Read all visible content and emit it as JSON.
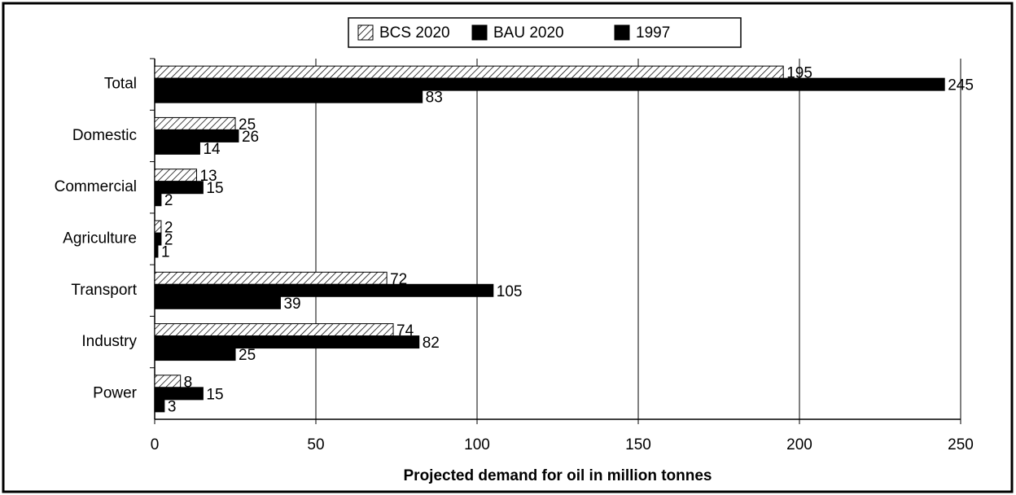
{
  "chart_data": {
    "type": "hbar",
    "x_label": "Projected demand for oil in million tonnes",
    "categories": [
      "Total",
      "Domestic",
      "Commercial",
      "Agriculture",
      "Transport",
      "Industry",
      "Power"
    ],
    "series": [
      {
        "name": "BCS 2020",
        "color": "#000000",
        "pattern": "hatch",
        "values": [
          195,
          25,
          13,
          2,
          72,
          74,
          8
        ]
      },
      {
        "name": "BAU 2020",
        "color": "#000000",
        "values": [
          245,
          26,
          15,
          2,
          105,
          82,
          15
        ]
      },
      {
        "name": "1997",
        "color": "#000000",
        "values": [
          83,
          14,
          2,
          1,
          39,
          25,
          3
        ]
      }
    ],
    "xlim": [
      0,
      250
    ],
    "xticks": [
      0,
      50,
      100,
      150,
      200,
      250
    ],
    "grid": true,
    "legend": "top"
  }
}
